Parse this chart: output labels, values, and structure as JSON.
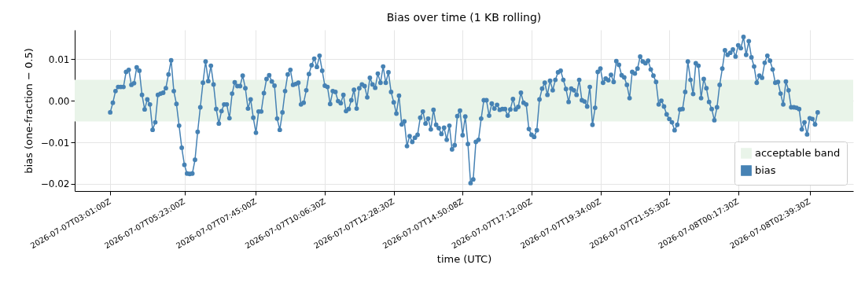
{
  "chart_data": {
    "type": "line",
    "title": "Bias over time (1 KB rolling)",
    "xlabel": "time (UTC)",
    "ylabel": "bias (one-fraction − 0.5)",
    "categories": [
      "2026-07-07T03:01:00Z",
      null,
      null,
      null,
      null,
      null,
      null,
      null,
      null,
      null,
      null,
      null,
      null,
      null,
      null,
      null,
      null,
      null,
      null,
      null,
      null,
      null,
      null,
      null,
      null,
      null,
      null,
      null,
      "2026-07-07T05:23:00Z",
      null,
      null,
      null,
      null,
      null,
      null,
      null,
      null,
      null,
      null,
      null,
      null,
      null,
      null,
      null,
      null,
      null,
      null,
      null,
      null,
      null,
      null,
      null,
      null,
      null,
      null,
      "2026-07-07T07:45:00Z",
      null,
      null,
      null,
      null,
      null,
      null,
      null,
      null,
      null,
      null,
      null,
      null,
      null,
      null,
      null,
      null,
      null,
      null,
      null,
      null,
      null,
      null,
      null,
      null,
      null,
      "2026-07-07T10:06:30Z",
      null,
      null,
      null,
      null,
      null,
      null,
      null,
      null,
      null,
      null,
      null,
      null,
      null,
      null,
      null,
      null,
      null,
      null,
      null,
      null,
      null,
      null,
      null,
      null,
      null,
      "2026-07-07T12:28:30Z",
      null,
      null,
      null,
      null,
      null,
      null,
      null,
      null,
      null,
      null,
      null,
      null,
      null,
      null,
      null,
      null,
      null,
      null,
      null,
      null,
      null,
      null,
      null,
      null,
      null,
      "2026-07-07T14:50:08Z",
      null,
      null,
      null,
      null,
      null,
      null,
      null,
      null,
      null,
      null,
      null,
      null,
      null,
      null,
      null,
      null,
      null,
      null,
      null,
      null,
      null,
      null,
      null,
      null,
      null,
      "2026-07-07T17:12:00Z",
      null,
      null,
      null,
      null,
      null,
      null,
      null,
      null,
      null,
      null,
      null,
      null,
      null,
      null,
      null,
      null,
      null,
      null,
      null,
      null,
      null,
      null,
      null,
      null,
      null,
      "2026-07-07T19:34:00Z",
      null,
      null,
      null,
      null,
      null,
      null,
      null,
      null,
      null,
      null,
      null,
      null,
      null,
      null,
      null,
      null,
      null,
      null,
      null,
      null,
      null,
      null,
      null,
      null,
      null,
      "2026-07-07T21:55:30Z",
      null,
      null,
      null,
      null,
      null,
      null,
      null,
      null,
      null,
      null,
      null,
      null,
      null,
      null,
      null,
      null,
      null,
      null,
      null,
      null,
      null,
      null,
      null,
      null,
      null,
      "2026-07-08T00:17:30Z",
      null,
      null,
      null,
      null,
      null,
      null,
      null,
      null,
      null,
      null,
      null,
      null,
      null,
      null,
      null,
      null,
      null,
      null,
      null,
      null,
      null,
      null,
      null,
      null,
      null,
      null,
      "2026-07-08T02:39:30Z",
      null,
      null,
      null
    ],
    "series": [
      {
        "name": "bias",
        "color": "#4682b4",
        "values": [
          -0.0028,
          -0.0005,
          0.0023,
          0.0033,
          0.0033,
          0.0033,
          0.0069,
          0.0074,
          0.0038,
          0.0042,
          0.008,
          0.0072,
          0.0014,
          -0.0021,
          0.0003,
          -0.0009,
          -0.007,
          -0.0052,
          0.0014,
          0.0017,
          0.0019,
          0.003,
          0.0063,
          0.0097,
          0.0023,
          -0.0008,
          -0.006,
          -0.0113,
          -0.0154,
          -0.0175,
          -0.0176,
          -0.0175,
          -0.0142,
          -0.0075,
          -0.0016,
          0.0043,
          0.0094,
          0.0047,
          0.0084,
          0.0039,
          -0.002,
          -0.0055,
          -0.0025,
          -0.0009,
          -0.0009,
          -0.0042,
          0.0017,
          0.0044,
          0.0035,
          0.0035,
          0.006,
          0.003,
          -0.0019,
          0.0003,
          -0.0041,
          -0.0077,
          -0.0026,
          -0.0026,
          0.0018,
          0.0052,
          0.0061,
          0.0046,
          0.0036,
          -0.0043,
          -0.007,
          -0.0028,
          0.0023,
          0.0063,
          0.0074,
          0.0038,
          0.004,
          0.0043,
          -0.0009,
          -0.0005,
          0.0025,
          0.0064,
          0.0085,
          0.0101,
          0.0081,
          0.0108,
          0.0072,
          0.0036,
          0.0033,
          -0.0008,
          0.0023,
          0.0021,
          -0.0001,
          -0.0006,
          0.0014,
          -0.0025,
          -0.002,
          0.0001,
          0.0026,
          -0.0019,
          0.003,
          0.0039,
          0.0035,
          0.0008,
          0.0055,
          0.0039,
          0.0031,
          0.0065,
          0.0043,
          0.0082,
          0.0043,
          0.0068,
          0.0021,
          -0.0004,
          -0.0031,
          0.0012,
          -0.0057,
          -0.005,
          -0.0109,
          -0.0085,
          -0.0099,
          -0.0089,
          -0.0082,
          -0.0041,
          -0.0026,
          -0.0055,
          -0.0043,
          -0.0069,
          -0.0022,
          -0.0058,
          -0.0066,
          -0.008,
          -0.0065,
          -0.0094,
          -0.006,
          -0.0117,
          -0.0107,
          -0.0037,
          -0.0024,
          -0.0083,
          -0.0038,
          -0.0104,
          -0.0198,
          -0.0189,
          -0.0099,
          -0.0094,
          -0.0043,
          0.0001,
          0.0001,
          -0.0036,
          -0.0007,
          -0.0019,
          -0.001,
          -0.0022,
          -0.002,
          -0.002,
          -0.0036,
          -0.0021,
          0.0004,
          -0.0021,
          -0.0015,
          0.0019,
          -0.0005,
          -0.0009,
          -0.0068,
          -0.0082,
          -0.0087,
          -0.0071,
          0.0003,
          0.0029,
          0.0043,
          0.0014,
          0.0048,
          0.0025,
          0.005,
          0.0068,
          0.0072,
          0.005,
          0.0028,
          -0.0003,
          0.0029,
          0.0025,
          0.0014,
          0.005,
          0.0001,
          -0.0002,
          -0.0014,
          0.0033,
          -0.0058,
          -0.0017,
          0.0069,
          0.0077,
          0.0043,
          0.0053,
          0.0049,
          0.0062,
          0.0045,
          0.0095,
          0.0086,
          0.0061,
          0.0056,
          0.0038,
          0.0006,
          0.0069,
          0.0065,
          0.0077,
          0.0106,
          0.0094,
          0.009,
          0.0096,
          0.0075,
          0.006,
          0.0045,
          -0.0009,
          0,
          -0.0014,
          -0.0033,
          -0.0044,
          -0.0052,
          -0.0071,
          -0.0058,
          -0.0021,
          -0.002,
          0.0021,
          0.0094,
          0.005,
          0.0016,
          0.009,
          0.0084,
          0.0006,
          0.0052,
          0.003,
          -0.0003,
          -0.002,
          -0.0047,
          -0.0016,
          0.0038,
          0.0077,
          0.0121,
          0.011,
          0.0115,
          0.0123,
          0.0106,
          0.0133,
          0.0126,
          0.0153,
          0.011,
          0.0143,
          0.0104,
          0.0082,
          0.0043,
          0.006,
          0.0055,
          0.0091,
          0.0108,
          0.0096,
          0.0075,
          0.0043,
          0.0045,
          0.0017,
          -0.0009,
          0.0046,
          0.0025,
          -0.0016,
          -0.0016,
          -0.0017,
          -0.002,
          -0.0069,
          -0.0052,
          -0.0081,
          -0.0042,
          -0.0044,
          -0.0057,
          -0.0028
        ]
      }
    ],
    "ylim": [
      -0.0217,
      0.017
    ],
    "yticks": [
      {
        "value": -0.02,
        "label": "−0.02"
      },
      {
        "value": -0.01,
        "label": "−0.01"
      },
      {
        "value": 0,
        "label": "0.00"
      },
      {
        "value": 0.01,
        "label": "0.01"
      }
    ],
    "bands": [
      {
        "axis": "y",
        "from": -0.005,
        "to": 0.005,
        "label": "acceptable band",
        "color": "#e9f4e9"
      }
    ],
    "grid": true,
    "legend": "bottom right",
    "marker": "circle"
  }
}
